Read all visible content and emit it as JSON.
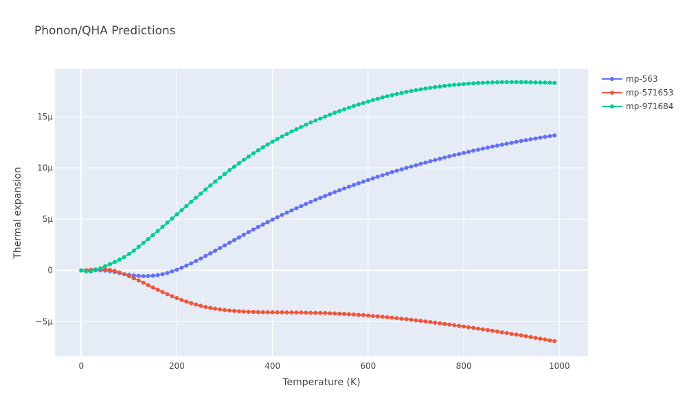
{
  "chart_data": {
    "type": "line",
    "title": "Phonon/QHA Predictions",
    "xlabel": "Temperature (K)",
    "ylabel": "Thermal expansion",
    "xlim": [
      -55,
      1060
    ],
    "ylim": [
      -8.4,
      19.7
    ],
    "y_unit_scale": "1e-6",
    "xticks": [
      0,
      200,
      400,
      600,
      800,
      1000
    ],
    "xtick_labels": [
      "0",
      "200",
      "400",
      "600",
      "800",
      "1000"
    ],
    "yticks": [
      -5,
      0,
      5,
      10,
      15
    ],
    "ytick_labels": [
      "−5μ",
      "0",
      "5μ",
      "10μ",
      "15μ"
    ],
    "grid": true,
    "legend_position": "top-right",
    "x": [
      0,
      10,
      20,
      30,
      40,
      50,
      60,
      70,
      80,
      90,
      100,
      110,
      120,
      130,
      140,
      150,
      160,
      170,
      180,
      190,
      200,
      210,
      220,
      230,
      240,
      250,
      260,
      270,
      280,
      290,
      300,
      310,
      320,
      330,
      340,
      350,
      360,
      370,
      380,
      390,
      400,
      410,
      420,
      430,
      440,
      450,
      460,
      470,
      480,
      490,
      500,
      510,
      520,
      530,
      540,
      550,
      560,
      570,
      580,
      590,
      600,
      610,
      620,
      630,
      640,
      650,
      660,
      670,
      680,
      690,
      700,
      710,
      720,
      730,
      740,
      750,
      760,
      770,
      780,
      790,
      800,
      810,
      820,
      830,
      840,
      850,
      860,
      870,
      880,
      890,
      900,
      910,
      920,
      930,
      940,
      950,
      960,
      970,
      980,
      990
    ],
    "series": [
      {
        "name": "mp-563",
        "color": "#636efa",
        "values": [
          0,
          0.01,
          0.02,
          0.02,
          0.01,
          -0.02,
          -0.08,
          -0.16,
          -0.26,
          -0.36,
          -0.44,
          -0.5,
          -0.54,
          -0.56,
          -0.55,
          -0.52,
          -0.46,
          -0.37,
          -0.25,
          -0.1,
          0.07,
          0.26,
          0.47,
          0.69,
          0.92,
          1.16,
          1.41,
          1.66,
          1.92,
          2.18,
          2.44,
          2.7,
          2.96,
          3.22,
          3.48,
          3.74,
          3.99,
          4.24,
          4.48,
          4.72,
          4.96,
          5.19,
          5.42,
          5.64,
          5.86,
          6.07,
          6.28,
          6.49,
          6.69,
          6.89,
          7.08,
          7.27,
          7.46,
          7.64,
          7.82,
          8,
          8.17,
          8.34,
          8.51,
          8.67,
          8.83,
          8.99,
          9.14,
          9.29,
          9.44,
          9.59,
          9.73,
          9.87,
          10.01,
          10.14,
          10.27,
          10.4,
          10.53,
          10.66,
          10.78,
          10.9,
          11.02,
          11.14,
          11.25,
          11.36,
          11.47,
          11.58,
          11.69,
          11.79,
          11.89,
          11.99,
          12.09,
          12.19,
          12.28,
          12.37,
          12.46,
          12.55,
          12.64,
          12.72,
          12.8,
          12.88,
          12.96,
          13.04,
          13.11,
          13.18
        ]
      },
      {
        "name": "mp-571653",
        "color": "#ef553b",
        "values": [
          0,
          0.02,
          0.06,
          0.1,
          0.12,
          0.1,
          0.04,
          -0.06,
          -0.2,
          -0.37,
          -0.56,
          -0.77,
          -0.99,
          -1.21,
          -1.44,
          -1.67,
          -1.89,
          -2.11,
          -2.32,
          -2.52,
          -2.71,
          -2.89,
          -3.05,
          -3.2,
          -3.34,
          -3.46,
          -3.57,
          -3.66,
          -3.74,
          -3.81,
          -3.87,
          -3.92,
          -3.96,
          -3.99,
          -4.02,
          -4.04,
          -4.06,
          -4.07,
          -4.08,
          -4.09,
          -4.1,
          -4.1,
          -4.1,
          -4.11,
          -4.11,
          -4.12,
          -4.12,
          -4.13,
          -4.14,
          -4.15,
          -4.16,
          -4.17,
          -4.19,
          -4.21,
          -4.23,
          -4.25,
          -4.28,
          -4.31,
          -4.34,
          -4.37,
          -4.41,
          -4.45,
          -4.49,
          -4.53,
          -4.58,
          -4.62,
          -4.67,
          -4.72,
          -4.77,
          -4.82,
          -4.88,
          -4.93,
          -4.99,
          -5.05,
          -5.11,
          -5.17,
          -5.23,
          -5.29,
          -5.35,
          -5.42,
          -5.48,
          -5.55,
          -5.62,
          -5.69,
          -5.76,
          -5.83,
          -5.9,
          -5.97,
          -6.05,
          -6.12,
          -6.2,
          -6.27,
          -6.35,
          -6.43,
          -6.51,
          -6.59,
          -6.67,
          -6.75,
          -6.84,
          -6.92
        ]
      },
      {
        "name": "mp-971684",
        "color": "#00cc96",
        "values": [
          0,
          -0.1,
          -0.12,
          0.05,
          0.2,
          0.4,
          0.6,
          0.82,
          1.05,
          1.3,
          1.6,
          1.93,
          2.3,
          2.68,
          3.06,
          3.45,
          3.85,
          4.25,
          4.66,
          5.06,
          5.47,
          5.88,
          6.29,
          6.7,
          7.1,
          7.5,
          7.9,
          8.29,
          8.67,
          9.05,
          9.42,
          9.78,
          10.13,
          10.47,
          10.8,
          11.12,
          11.43,
          11.73,
          12.02,
          12.3,
          12.57,
          12.83,
          13.08,
          13.32,
          13.56,
          13.79,
          14.01,
          14.23,
          14.44,
          14.64,
          14.83,
          15.02,
          15.21,
          15.39,
          15.56,
          15.73,
          15.89,
          16.05,
          16.2,
          16.35,
          16.49,
          16.63,
          16.76,
          16.89,
          17.01,
          17.12,
          17.23,
          17.33,
          17.43,
          17.52,
          17.6,
          17.68,
          17.76,
          17.83,
          17.9,
          17.96,
          18.02,
          18.07,
          18.12,
          18.16,
          18.2,
          18.24,
          18.27,
          18.3,
          18.32,
          18.34,
          18.36,
          18.37,
          18.38,
          18.39,
          18.39,
          18.39,
          18.38,
          18.38,
          18.37,
          18.36,
          18.35,
          18.34,
          18.33,
          18.31
        ]
      }
    ]
  }
}
